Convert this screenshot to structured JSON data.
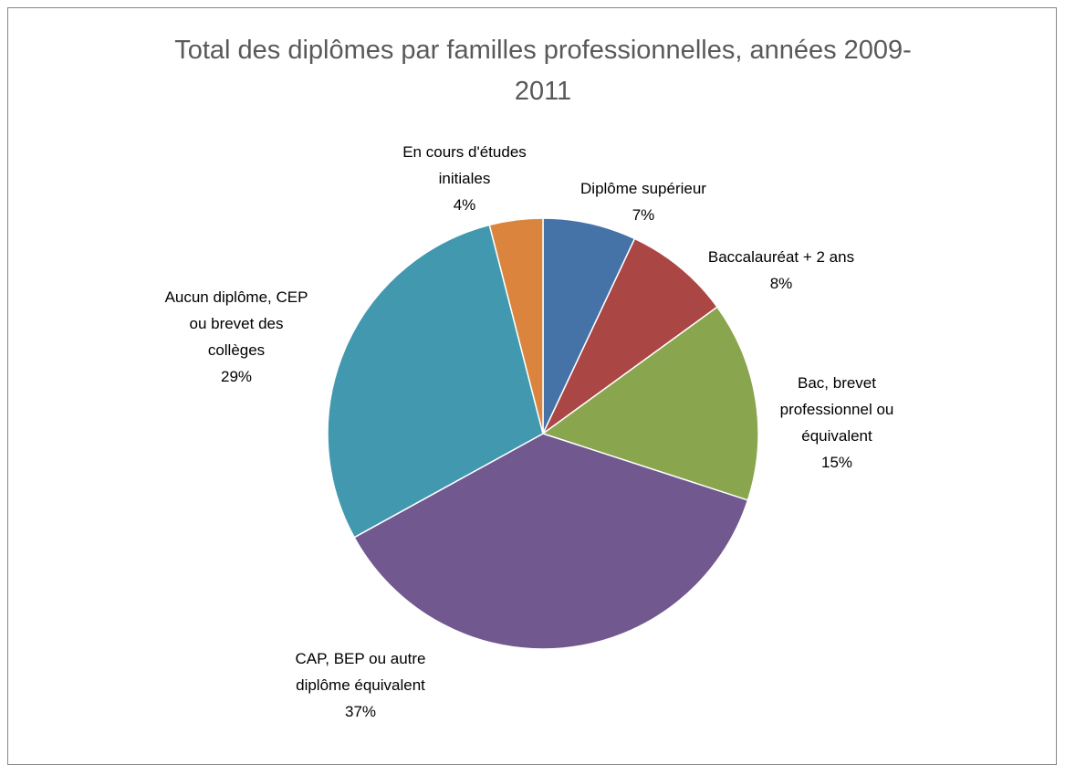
{
  "chart_data": {
    "type": "pie",
    "title": "Total des diplômes par familles professionnelles, années 2009-2011",
    "categories": [
      "Diplôme supérieur",
      "Baccalauréat + 2 ans",
      "Bac, brevet professionnel ou équivalent",
      "CAP, BEP ou autre diplôme équivalent",
      "Aucun diplôme, CEP ou brevet des collèges",
      "En cours d'études initiales"
    ],
    "values": [
      7,
      8,
      15,
      37,
      29,
      4
    ],
    "value_labels": [
      "7%",
      "8%",
      "15%",
      "37%",
      "29%",
      "4%"
    ],
    "colors": [
      "#4572a7",
      "#aa4643",
      "#89a54e",
      "#71588f",
      "#4198af",
      "#db843d"
    ]
  }
}
